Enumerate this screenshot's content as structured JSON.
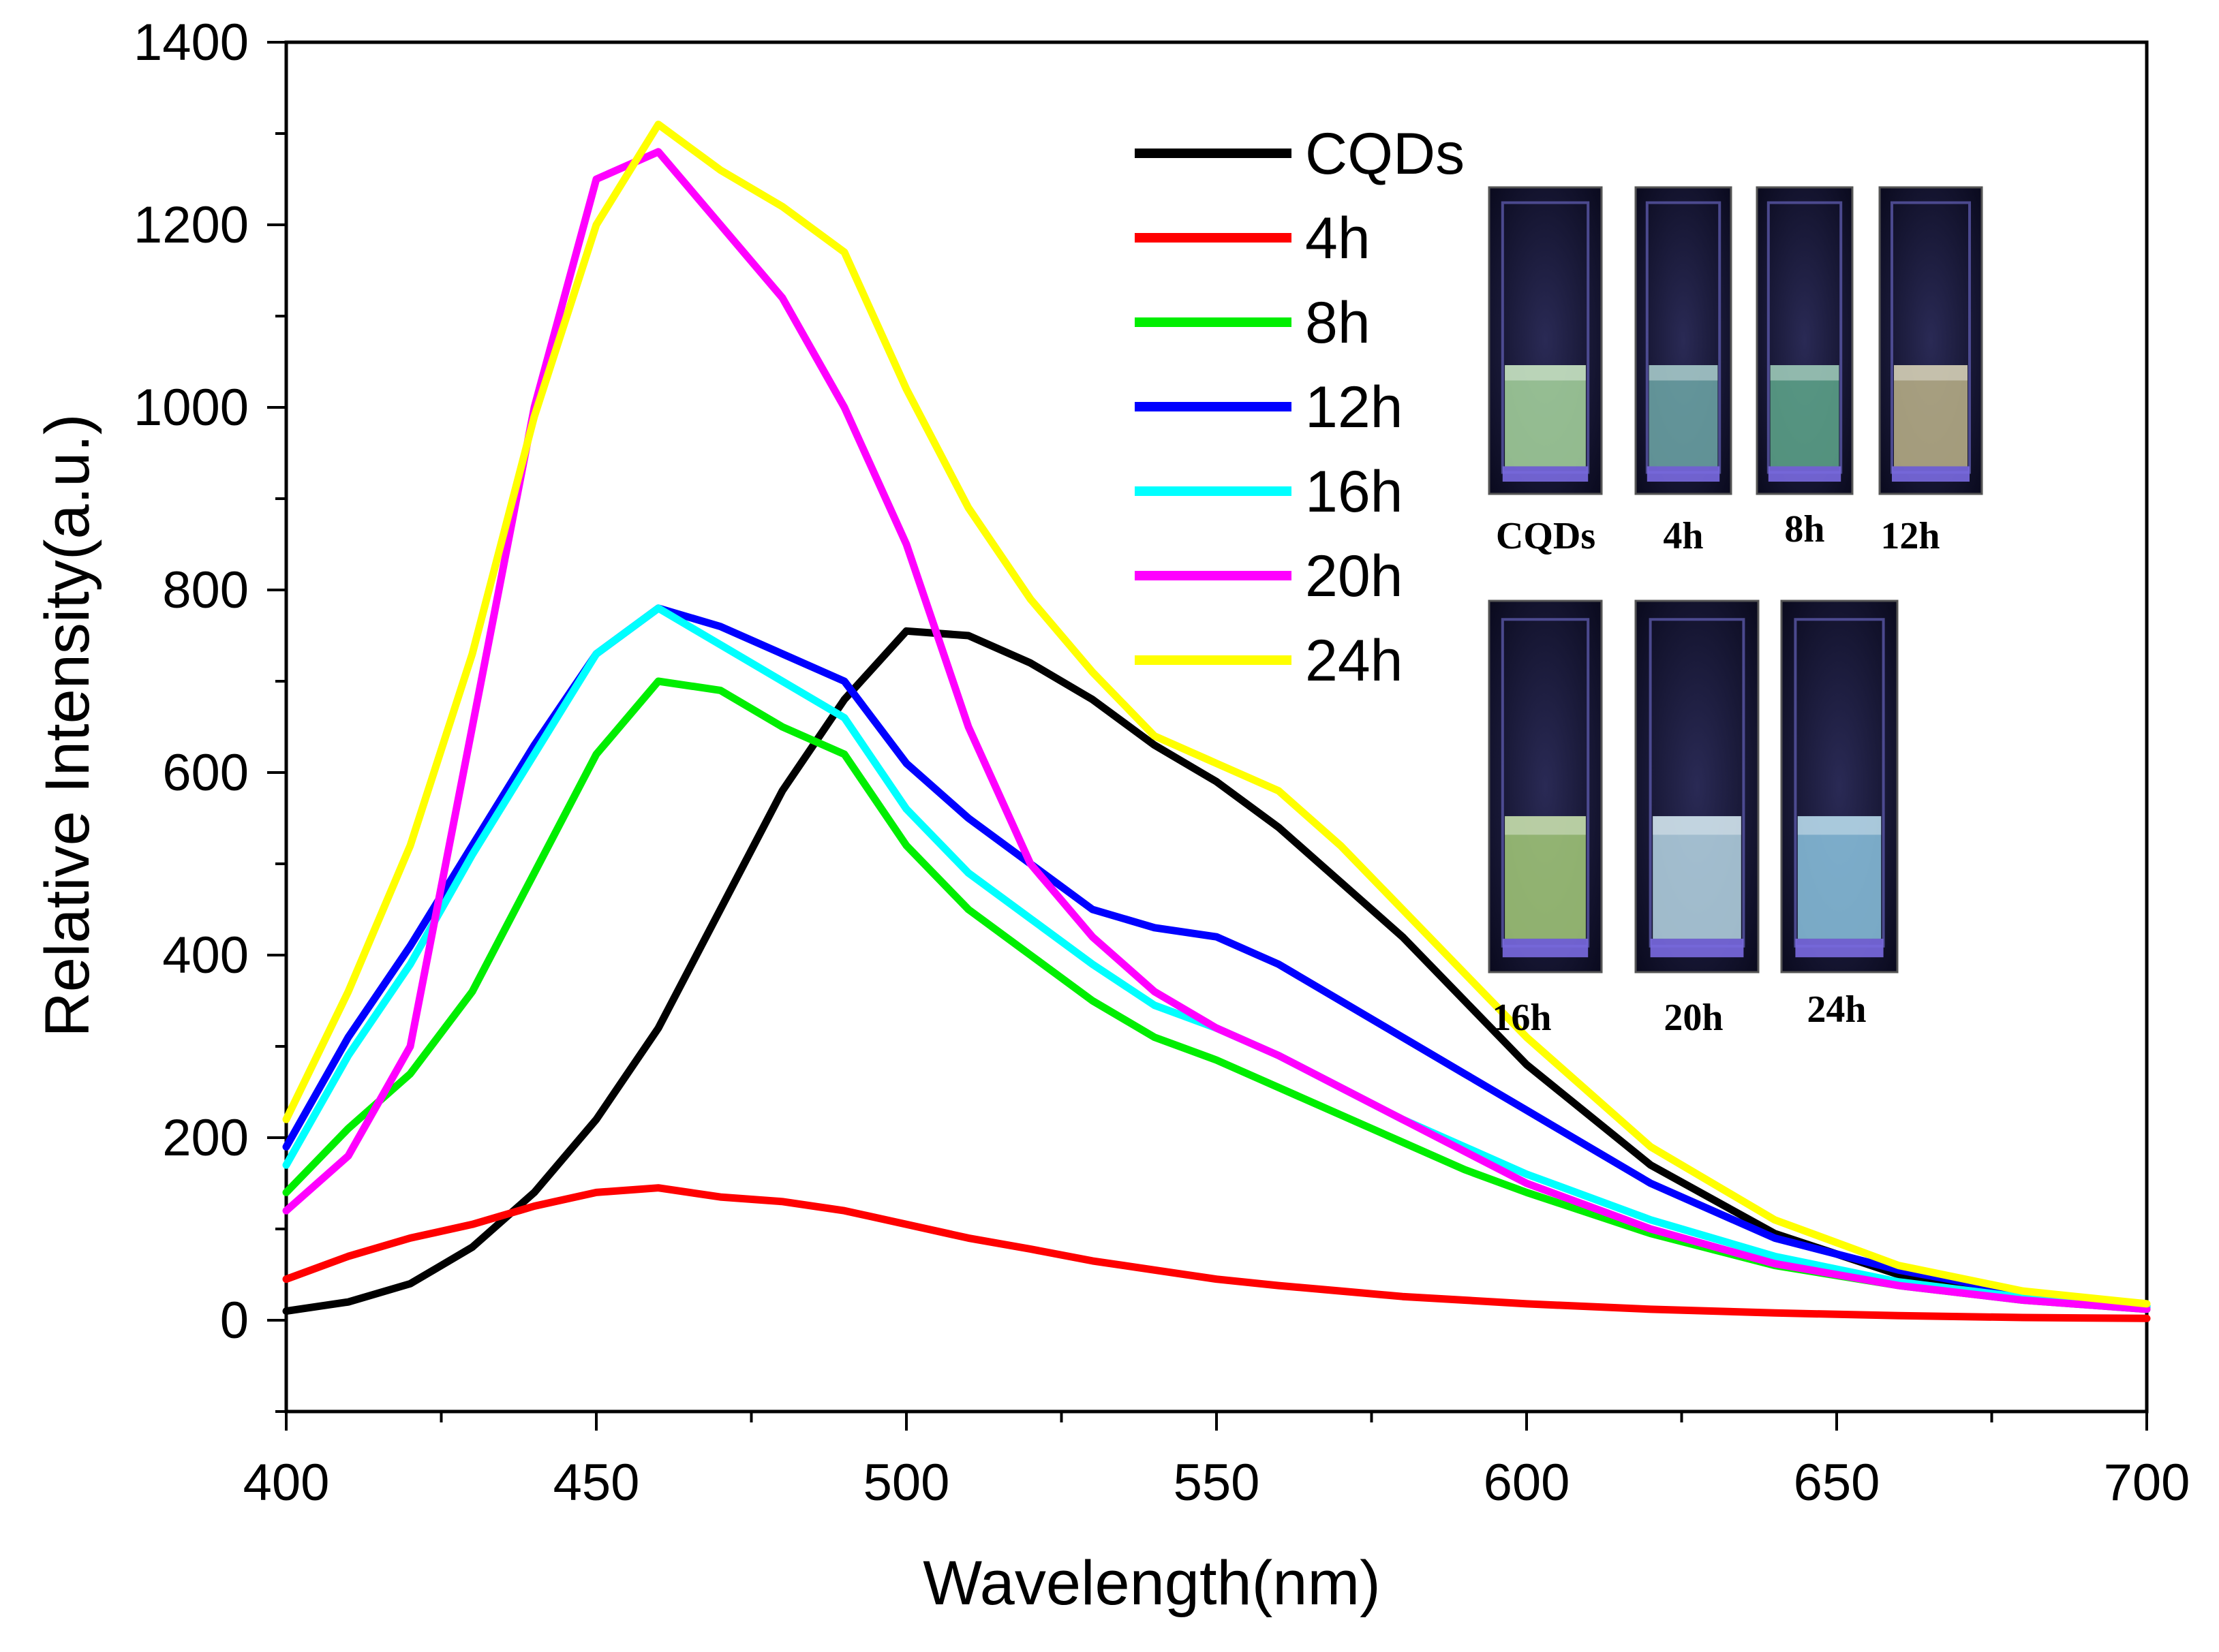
{
  "chart_data": {
    "type": "line",
    "title": "",
    "xlabel": "Wavelength(nm)",
    "ylabel": "Relative Intensity(a.u.)",
    "xlim": [
      400,
      700
    ],
    "ylim": [
      -100,
      1400
    ],
    "xticks": [
      "400",
      "450",
      "500",
      "550",
      "600",
      "650",
      "700"
    ],
    "yticks": [
      "0",
      "200",
      "400",
      "600",
      "800",
      "1000",
      "1200",
      "1400"
    ],
    "x": [
      400,
      410,
      420,
      430,
      440,
      450,
      460,
      470,
      480,
      490,
      500,
      510,
      520,
      530,
      540,
      550,
      560,
      570,
      580,
      590,
      600,
      620,
      640,
      660,
      680,
      700
    ],
    "series": [
      {
        "name": "CQDs",
        "color": "#000000",
        "values": [
          10,
          20,
          40,
          80,
          140,
          220,
          320,
          450,
          580,
          680,
          755,
          750,
          720,
          680,
          630,
          590,
          540,
          480,
          420,
          350,
          280,
          170,
          95,
          50,
          25,
          15
        ]
      },
      {
        "name": "4h",
        "color": "#ff0000",
        "values": [
          45,
          70,
          90,
          105,
          125,
          140,
          145,
          135,
          130,
          120,
          105,
          90,
          78,
          65,
          55,
          45,
          38,
          32,
          26,
          22,
          18,
          12,
          8,
          5,
          3,
          2
        ]
      },
      {
        "name": "8h",
        "color": "#00ee00",
        "values": [
          140,
          210,
          270,
          360,
          490,
          620,
          700,
          690,
          650,
          620,
          520,
          450,
          400,
          350,
          310,
          285,
          255,
          225,
          195,
          165,
          140,
          95,
          60,
          38,
          22,
          12
        ]
      },
      {
        "name": "12h",
        "color": "#0000ff",
        "values": [
          190,
          310,
          410,
          520,
          630,
          730,
          780,
          760,
          730,
          700,
          610,
          550,
          500,
          450,
          430,
          420,
          390,
          350,
          310,
          270,
          230,
          150,
          90,
          55,
          30,
          15
        ]
      },
      {
        "name": "16h",
        "color": "#00ffff",
        "values": [
          170,
          290,
          390,
          510,
          620,
          730,
          780,
          740,
          700,
          660,
          560,
          490,
          440,
          390,
          345,
          320,
          290,
          255,
          220,
          190,
          160,
          110,
          70,
          42,
          25,
          15
        ]
      },
      {
        "name": "20h",
        "color": "#ff00ff",
        "values": [
          120,
          180,
          300,
          650,
          1000,
          1250,
          1280,
          1200,
          1120,
          1000,
          850,
          650,
          500,
          420,
          360,
          320,
          290,
          255,
          220,
          185,
          150,
          100,
          62,
          38,
          22,
          12
        ]
      },
      {
        "name": "24h",
        "color": "#ffff00",
        "values": [
          220,
          360,
          520,
          730,
          990,
          1200,
          1310,
          1260,
          1220,
          1170,
          1020,
          890,
          790,
          710,
          640,
          610,
          580,
          520,
          450,
          380,
          310,
          190,
          110,
          60,
          32,
          18
        ]
      }
    ],
    "legend": "top-right",
    "grid": false
  },
  "inset": {
    "row1": [
      "CQDs",
      "4h",
      "8h",
      "12h"
    ],
    "row2": [
      "16h",
      "20h",
      "24h"
    ],
    "glow_colors": [
      "#a9d8a0",
      "#6ea8a8",
      "#5fa88c",
      "#bdb48a",
      "#a6cc7a",
      "#b8d8e6",
      "#8cc4e0"
    ]
  }
}
